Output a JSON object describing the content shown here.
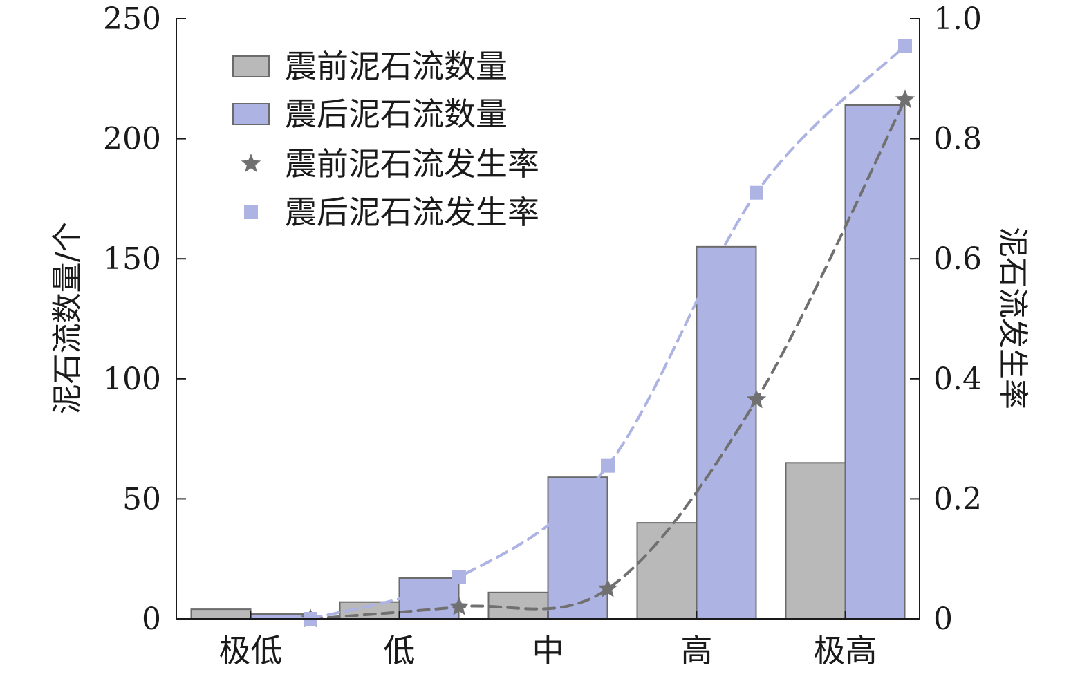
{
  "chart_data": {
    "type": "bar",
    "categories": [
      "极低",
      "低",
      "中",
      "高",
      "极高"
    ],
    "series": [
      {
        "name": "震前泥石流数量",
        "type": "bar",
        "axis": "left",
        "values": [
          4,
          7,
          11,
          40,
          65
        ],
        "color": "#b9b9b9"
      },
      {
        "name": "震后泥石流数量",
        "type": "bar",
        "axis": "left",
        "values": [
          2,
          17,
          59,
          155,
          214
        ],
        "color": "#adb3e2"
      },
      {
        "name": "震前泥石流发生率",
        "type": "line",
        "axis": "right",
        "marker": "star",
        "values": [
          0.0,
          0.02,
          0.05,
          0.365,
          0.865
        ],
        "color": "#707070"
      },
      {
        "name": "震后泥石流发生率",
        "type": "line",
        "axis": "right",
        "marker": "square",
        "values": [
          0.0,
          0.07,
          0.255,
          0.71,
          0.955
        ],
        "color": "#adb3e2"
      }
    ],
    "ylabel_left": "泥石流数量/个",
    "ylabel_right": "泥石流发生率",
    "ylim_left": [
      0,
      250
    ],
    "ylim_right": [
      0,
      1.0
    ],
    "yticks_left": [
      "0",
      "50",
      "100",
      "150",
      "200",
      "250"
    ],
    "yticks_right": [
      "0",
      "0.2",
      "0.4",
      "0.6",
      "0.8",
      "1.0"
    ],
    "grid": false,
    "legend": "top-left"
  }
}
